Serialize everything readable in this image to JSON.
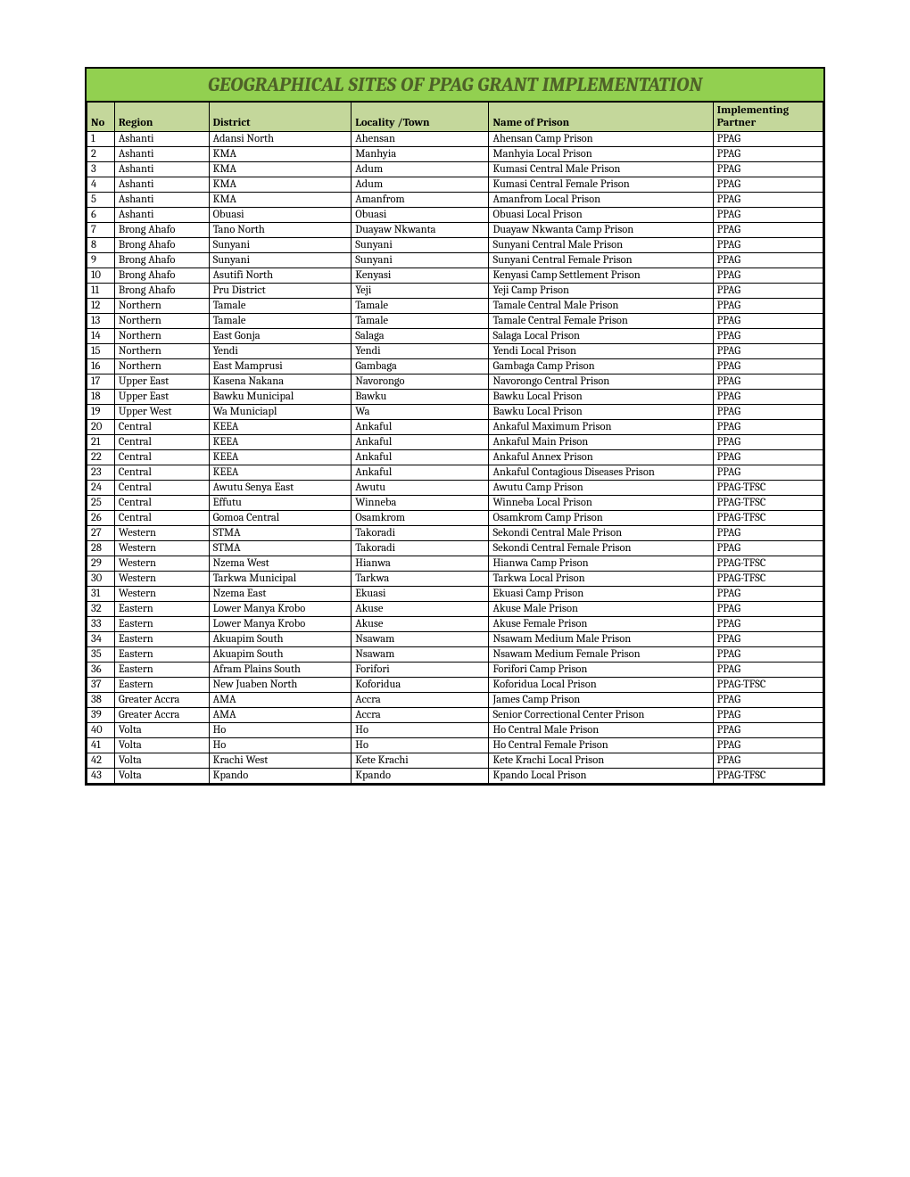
{
  "title": "GEOGRAPHICAL SITES OF PPAG GRANT IMPLEMENTATION",
  "columns": [
    "No",
    "Region",
    "District",
    "Locality /Town",
    "Name of Prison",
    "Implementing Partner"
  ],
  "rows": [
    [
      "1",
      "Ashanti",
      "Adansi North",
      "Ahensan",
      "Ahensan Camp Prison",
      "PPAG"
    ],
    [
      "2",
      "Ashanti",
      "KMA",
      "Manhyia",
      "Manhyia Local Prison",
      "PPAG"
    ],
    [
      "3",
      "Ashanti",
      "KMA",
      "Adum",
      "Kumasi Central Male Prison",
      "PPAG"
    ],
    [
      "4",
      "Ashanti",
      "KMA",
      "Adum",
      "Kumasi Central Female Prison",
      "PPAG"
    ],
    [
      "5",
      "Ashanti",
      "KMA",
      "Amanfrom",
      "Amanfrom Local Prison",
      "PPAG"
    ],
    [
      "6",
      "Ashanti",
      "Obuasi",
      "Obuasi",
      "Obuasi Local Prison",
      "PPAG"
    ],
    [
      "7",
      "Brong Ahafo",
      "Tano North",
      "Duayaw Nkwanta",
      "Duayaw Nkwanta Camp Prison",
      "PPAG"
    ],
    [
      "8",
      "Brong Ahafo",
      "Sunyani",
      "Sunyani",
      "Sunyani Central Male Prison",
      "PPAG"
    ],
    [
      "9",
      "Brong Ahafo",
      "Sunyani",
      "Sunyani",
      "Sunyani Central Female Prison",
      "PPAG"
    ],
    [
      "10",
      "Brong Ahafo",
      "Asutifi North",
      "Kenyasi",
      "Kenyasi Camp Settlement Prison",
      "PPAG"
    ],
    [
      "11",
      "Brong Ahafo",
      "Pru District",
      "Yeji",
      "Yeji Camp Prison",
      "PPAG"
    ],
    [
      "12",
      "Northern",
      "Tamale",
      "Tamale",
      "Tamale Central Male Prison",
      "PPAG"
    ],
    [
      "13",
      "Northern",
      "Tamale",
      "Tamale",
      "Tamale Central Female Prison",
      "PPAG"
    ],
    [
      "14",
      "Northern",
      "East Gonja",
      "Salaga",
      "Salaga Local Prison",
      "PPAG"
    ],
    [
      "15",
      "Northern",
      "Yendi",
      "Yendi",
      "Yendi Local Prison",
      "PPAG"
    ],
    [
      "16",
      "Northern",
      "East Mamprusi",
      "Gambaga",
      "Gambaga Camp Prison",
      "PPAG"
    ],
    [
      "17",
      "Upper East",
      "Kasena Nakana",
      "Navorongo",
      "Navorongo Central Prison",
      "PPAG"
    ],
    [
      "18",
      "Upper East",
      "Bawku Municipal",
      "Bawku",
      "Bawku Local Prison",
      "PPAG"
    ],
    [
      "19",
      "Upper West",
      "Wa Municiapl",
      "Wa",
      "Bawku Local Prison",
      "PPAG"
    ],
    [
      "20",
      "Central",
      "KEEA",
      "Ankaful",
      "Ankaful Maximum Prison",
      "PPAG"
    ],
    [
      "21",
      "Central",
      "KEEA",
      "Ankaful",
      "Ankaful Main Prison",
      "PPAG"
    ],
    [
      "22",
      "Central",
      "KEEA",
      "Ankaful",
      "Ankaful Annex Prison",
      "PPAG"
    ],
    [
      "23",
      "Central",
      "KEEA",
      "Ankaful",
      "Ankaful Contagious Diseases Prison",
      "PPAG"
    ],
    [
      "24",
      "Central",
      "Awutu Senya East",
      "Awutu",
      "Awutu Camp Prison",
      "PPAG-TFSC"
    ],
    [
      "25",
      "Central",
      "Effutu",
      "Winneba",
      "Winneba Local Prison",
      "PPAG-TFSC"
    ],
    [
      "26",
      "Central",
      "Gomoa Central",
      "Osamkrom",
      "Osamkrom Camp Prison",
      "PPAG-TFSC"
    ],
    [
      "27",
      "Western",
      "STMA",
      "Takoradi",
      "Sekondi Central Male Prison",
      "PPAG"
    ],
    [
      "28",
      "Western",
      "STMA",
      "Takoradi",
      "Sekondi Central Female Prison",
      "PPAG"
    ],
    [
      "29",
      "Western",
      "Nzema West",
      "Hianwa",
      "Hianwa Camp Prison",
      "PPAG-TFSC"
    ],
    [
      "30",
      "Western",
      "Tarkwa Municipal",
      "Tarkwa",
      "Tarkwa Local Prison",
      "PPAG-TFSC"
    ],
    [
      "31",
      "Western",
      "Nzema East",
      "Ekuasi",
      "Ekuasi Camp Prison",
      "PPAG"
    ],
    [
      "32",
      "Eastern",
      "Lower Manya Krobo",
      "Akuse",
      "Akuse Male Prison",
      "PPAG"
    ],
    [
      "33",
      "Eastern",
      "Lower Manya Krobo",
      "Akuse",
      "Akuse Female Prison",
      "PPAG"
    ],
    [
      "34",
      "Eastern",
      "Akuapim South",
      "Nsawam",
      "Nsawam Medium Male Prison",
      "PPAG"
    ],
    [
      "35",
      "Eastern",
      "Akuapim South",
      "Nsawam",
      "Nsawam Medium Female Prison",
      "PPAG"
    ],
    [
      "36",
      "Eastern",
      "Afram Plains South",
      "Forifori",
      "Forifori Camp Prison",
      "PPAG"
    ],
    [
      "37",
      "Eastern",
      "New Juaben North",
      "Koforidua",
      "Koforidua Local Prison",
      "PPAG-TFSC"
    ],
    [
      "38",
      "Greater Accra",
      "AMA",
      "Accra",
      "James Camp Prison",
      "PPAG"
    ],
    [
      "39",
      "Greater Accra",
      "AMA",
      "Accra",
      "Senior Correctional Center Prison",
      "PPAG"
    ],
    [
      "40",
      "Volta",
      "Ho",
      "Ho",
      "Ho Central Male Prison",
      "PPAG"
    ],
    [
      "41",
      "Volta",
      "Ho",
      "Ho",
      "Ho Central Female Prison",
      "PPAG"
    ],
    [
      "42",
      "Volta",
      "Krachi West",
      "Kete Krachi",
      "Kete Krachi Local Prison",
      "PPAG"
    ],
    [
      "43",
      "Volta",
      "Kpando",
      "Kpando",
      "Kpando Local Prison",
      "PPAG-TFSC"
    ]
  ],
  "colors": {
    "title_bg": "#92d050",
    "title_text": "#4f6228",
    "header_bg": "#c4d79b",
    "border": "#000000",
    "page_bg": "#ffffff"
  }
}
